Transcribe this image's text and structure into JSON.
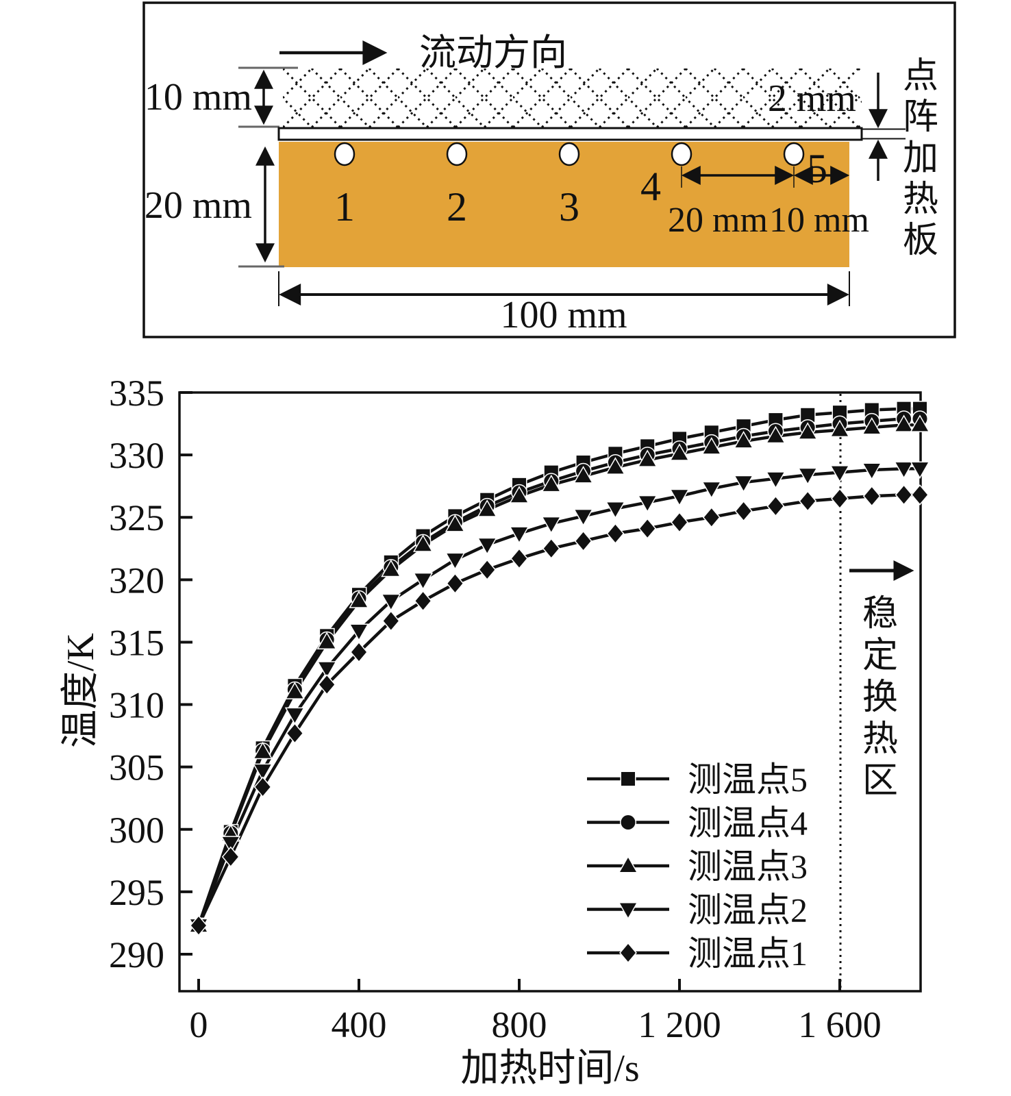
{
  "diagram": {
    "flow_direction_label": "流动方向",
    "lattice_height_label": "10 mm",
    "plate_thickness_label": "2 mm",
    "block_height_label": "20 mm",
    "point_spacing_label": "20 mm",
    "edge_offset_label": "10 mm",
    "block_length_label": "100 mm",
    "heater_plate_label": "点阵加热板",
    "measure_point_labels": [
      "1",
      "2",
      "3",
      "4",
      "5"
    ],
    "block_color": "#E3A338",
    "line_color": "#111111"
  },
  "chart_data": {
    "type": "line",
    "title": "",
    "xlabel": "加热时间/s",
    "ylabel": "温度/K",
    "xlim": [
      -50,
      1802
    ],
    "ylim": [
      287,
      335
    ],
    "grid": false,
    "legend_position": "inside-lower-right",
    "x_ticks": [
      0,
      400,
      800,
      1200,
      1600
    ],
    "x_tick_labels": [
      "0",
      "400",
      "800",
      "1 200",
      "1 600"
    ],
    "y_ticks": [
      290,
      295,
      300,
      305,
      310,
      315,
      320,
      325,
      330,
      335
    ],
    "annotation_line_x": 1600,
    "annotation_label": "稳定换热区",
    "x": [
      0,
      80,
      160,
      240,
      320,
      400,
      480,
      560,
      640,
      720,
      800,
      880,
      960,
      1040,
      1120,
      1200,
      1280,
      1360,
      1440,
      1520,
      1600,
      1680,
      1760,
      1800
    ],
    "series": [
      {
        "name": "测温点5",
        "marker": "square",
        "values": [
          292.3,
          299.8,
          306.5,
          311.5,
          315.5,
          318.8,
          321.4,
          323.5,
          325.1,
          326.4,
          327.6,
          328.6,
          329.4,
          330.1,
          330.7,
          331.3,
          331.8,
          332.3,
          332.8,
          333.2,
          333.4,
          333.6,
          333.7,
          333.7
        ]
      },
      {
        "name": "测温点4",
        "marker": "circle",
        "values": [
          292.3,
          299.7,
          306.3,
          311.2,
          315.2,
          318.5,
          321.0,
          323.0,
          324.6,
          325.9,
          327.0,
          327.9,
          328.7,
          329.4,
          330.0,
          330.5,
          331.0,
          331.5,
          331.9,
          332.2,
          332.5,
          332.7,
          332.9,
          332.9
        ]
      },
      {
        "name": "测温点3",
        "marker": "triangle-up",
        "values": [
          292.3,
          299.6,
          306.2,
          311.0,
          315.0,
          318.3,
          320.8,
          322.8,
          324.4,
          325.6,
          326.7,
          327.6,
          328.3,
          329.0,
          329.6,
          330.1,
          330.6,
          331.1,
          331.5,
          331.8,
          332.0,
          332.2,
          332.4,
          332.4
        ]
      },
      {
        "name": "测温点2",
        "marker": "triangle-down",
        "values": [
          292.3,
          298.9,
          304.7,
          309.2,
          312.9,
          315.9,
          318.3,
          320.0,
          321.6,
          322.8,
          323.7,
          324.5,
          325.1,
          325.7,
          326.2,
          326.7,
          327.3,
          327.8,
          328.1,
          328.4,
          328.6,
          328.8,
          328.9,
          328.9
        ]
      },
      {
        "name": "测温点1",
        "marker": "diamond",
        "values": [
          292.3,
          297.8,
          303.4,
          307.7,
          311.6,
          314.2,
          316.7,
          318.3,
          319.7,
          320.8,
          321.7,
          322.5,
          323.1,
          323.7,
          324.1,
          324.6,
          325.0,
          325.5,
          325.9,
          326.3,
          326.5,
          326.7,
          326.8,
          326.8
        ]
      }
    ]
  }
}
